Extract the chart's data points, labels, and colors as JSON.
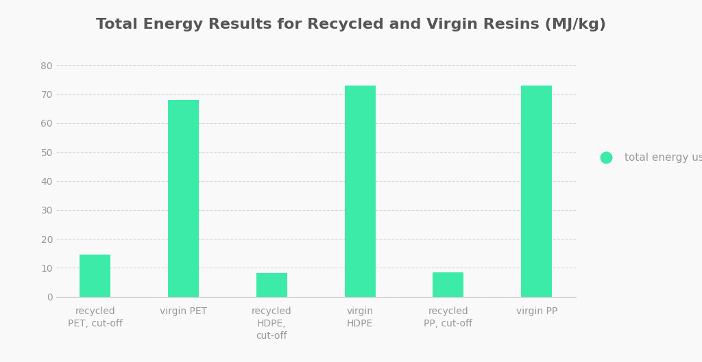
{
  "title": "Total Energy Results for Recycled and Virgin Resins (MJ/kg)",
  "categories": [
    "recycled\nPET, cut-off",
    "virgin PET",
    "recycled\nHDPE,\ncut-off",
    "virgin\nHDPE",
    "recycled\nPP, cut-off",
    "virgin PP"
  ],
  "values": [
    14.5,
    68.0,
    8.2,
    73.0,
    8.5,
    73.0
  ],
  "bar_color": "#3DEBA8",
  "legend_label": "total energy used",
  "ylim": [
    0,
    80
  ],
  "yticks": [
    0,
    10,
    20,
    30,
    40,
    50,
    60,
    70,
    80
  ],
  "background_color": "#f9f9f9",
  "plot_bg_color": "#f9f9f9",
  "title_color": "#555555",
  "tick_color": "#999999",
  "grid_color": "#cccccc",
  "title_fontsize": 16,
  "tick_fontsize": 10,
  "legend_fontsize": 11,
  "bar_width": 0.35
}
